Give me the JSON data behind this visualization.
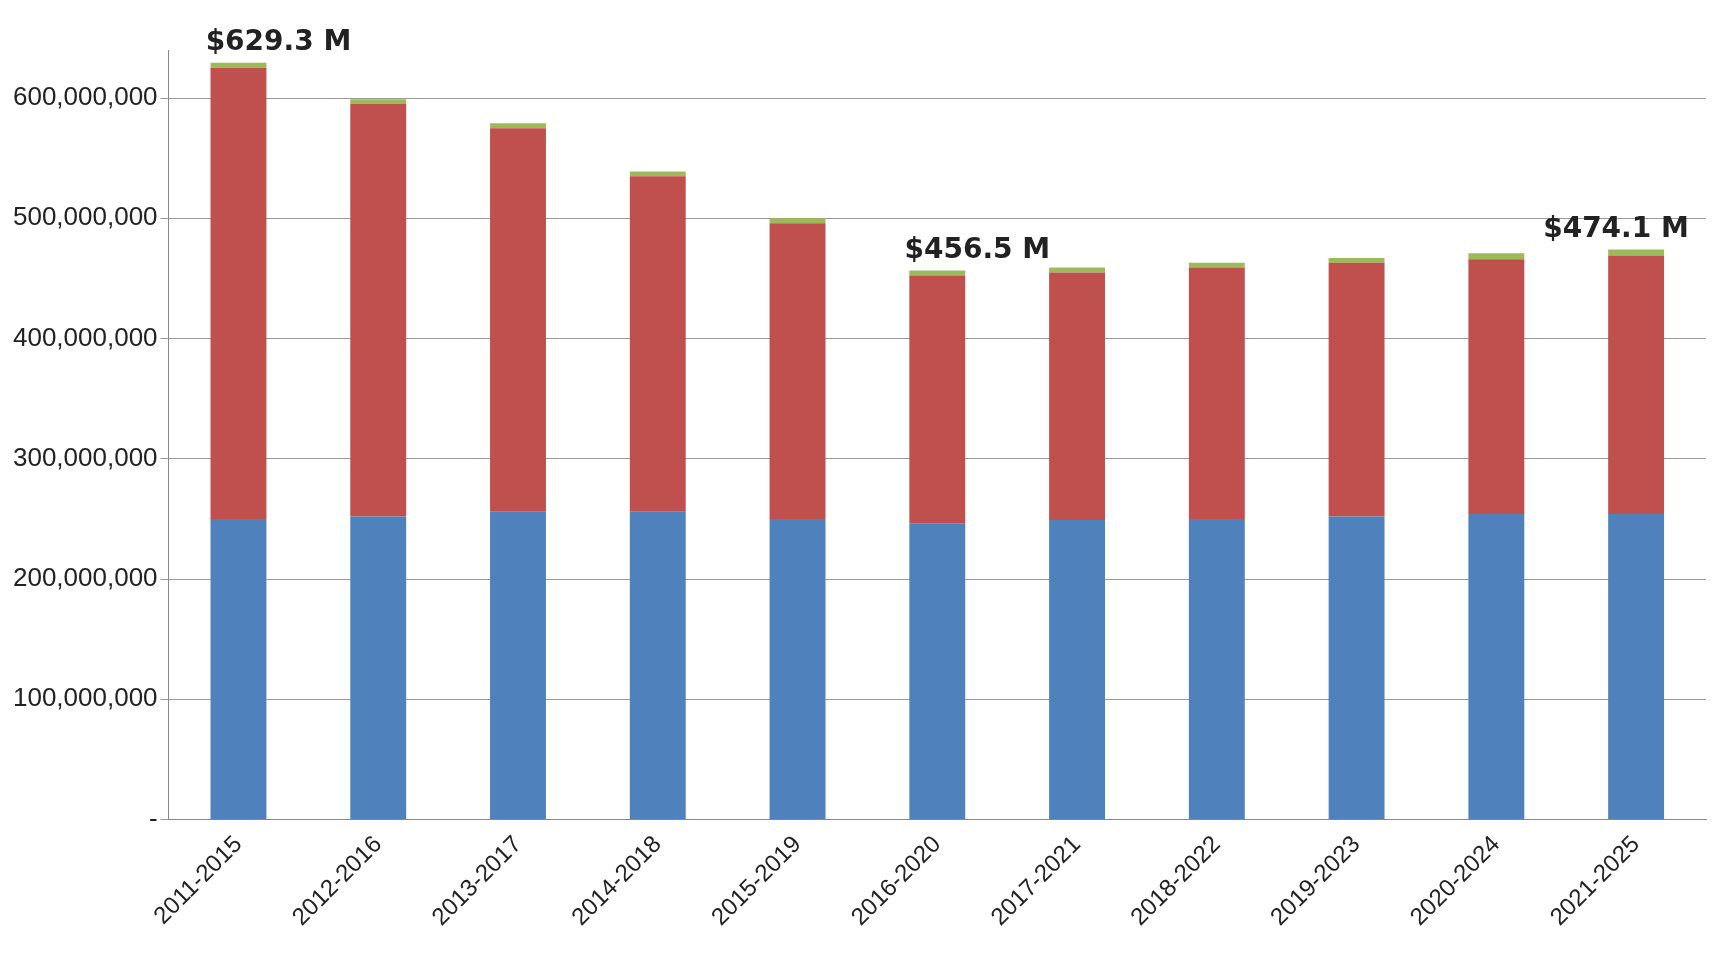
{
  "chart_data": {
    "type": "bar",
    "stacked": true,
    "categories": [
      "2011-2015",
      "2012-2016",
      "2013-2017",
      "2014-2018",
      "2015-2019",
      "2016-2020",
      "2017-2021",
      "2018-2022",
      "2019-2023",
      "2020-2024",
      "2021-2025"
    ],
    "series": [
      {
        "color": "#4f81bd",
        "values": [
          250000000,
          252000000,
          256000000,
          256000000,
          250000000,
          246000000,
          249000000,
          250000000,
          252000000,
          254000000,
          254000000
        ]
      },
      {
        "color": "#c0504d",
        "values": [
          375300000,
          343000000,
          319000000,
          279000000,
          246000000,
          206500000,
          206000000,
          209000000,
          211000000,
          212000000,
          215100000
        ]
      },
      {
        "color": "#9bbb59",
        "values": [
          4000000,
          4000000,
          4000000,
          4000000,
          4000000,
          4000000,
          4000000,
          4000000,
          4000000,
          5000000,
          5000000
        ]
      }
    ],
    "ylim": [
      0,
      640000000
    ],
    "yticks": [
      {
        "value": 0,
        "label": "-"
      },
      {
        "value": 100000000,
        "label": "100,000,000"
      },
      {
        "value": 200000000,
        "label": "200,000,000"
      },
      {
        "value": 300000000,
        "label": "300,000,000"
      },
      {
        "value": 400000000,
        "label": "400,000,000"
      },
      {
        "value": 500000000,
        "label": "500,000,000"
      },
      {
        "value": 600000000,
        "label": "600,000,000"
      }
    ],
    "grid": "y",
    "legend": false,
    "annotations": [
      {
        "text": "$629.3 M",
        "x": "2011-2015",
        "y": 629300000
      },
      {
        "text": "$456.5 M",
        "x": "2016-2020",
        "y": 456500000
      },
      {
        "text": "$474.1 M",
        "x": "2021-2025",
        "y": 474100000
      }
    ]
  }
}
